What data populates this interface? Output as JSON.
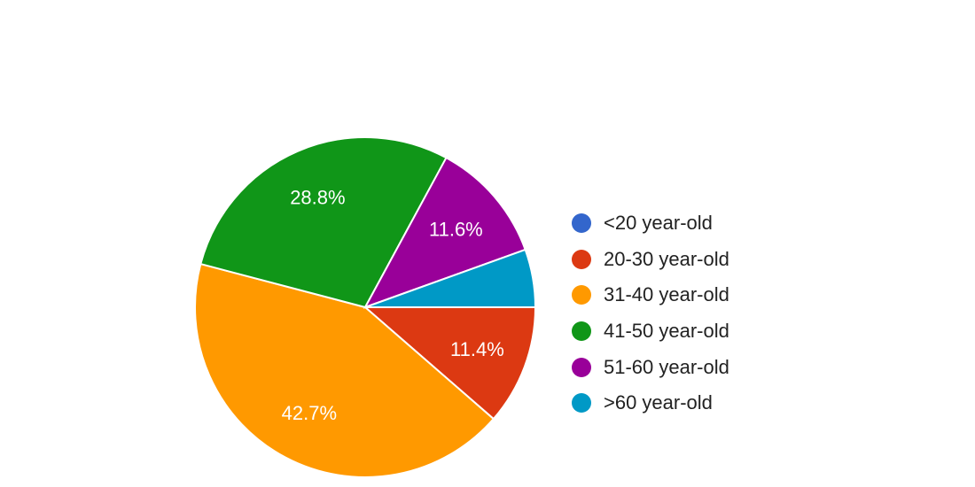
{
  "chart_data": {
    "type": "pie",
    "labels": [
      "<20 year-old",
      "20-30 year-old",
      "31-40 year-old",
      "41-50 year-old",
      "51-60 year-old",
      ">60 year-old"
    ],
    "values": [
      0.0,
      11.4,
      42.7,
      28.8,
      11.6,
      5.5
    ],
    "data_labels": [
      "",
      "11.4%",
      "42.7%",
      "28.8%",
      "11.6%",
      ""
    ],
    "colors": [
      "#3366cc",
      "#dc3912",
      "#ff9900",
      "#109618",
      "#990099",
      "#0099c6"
    ],
    "legend_position": "right",
    "start_direction": "clockwise from right"
  }
}
